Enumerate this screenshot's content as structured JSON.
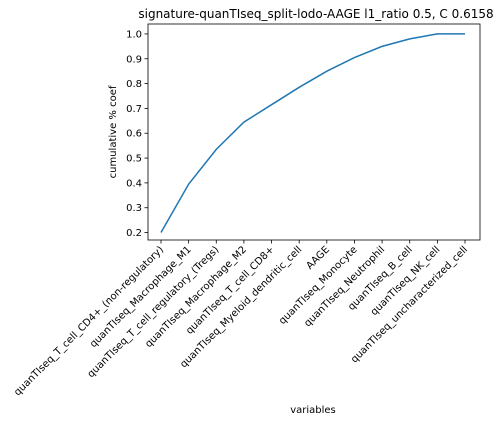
{
  "chart_data": {
    "type": "line",
    "title": "signature-quanTIseq_split-lodo-AAGE l1_ratio 0.5, C 0.6158",
    "xlabel": "variables",
    "ylabel": "cumulative % coef",
    "categories": [
      "quanTIseq_T_cell_CD4+_(non-regulatory)",
      "quanTIseq_Macrophage_M1",
      "quanTIseq_T_cell_regulatory_(Tregs)",
      "quanTIseq_Macrophage_M2",
      "quanTIseq_T_cell_CD8+",
      "quanTIseq_Myeloid_dendritic_cell",
      "AAGE",
      "quanTIseq_Monocyte",
      "quanTIseq_Neutrophil",
      "quanTIseq_B_cell",
      "quanTIseq_NK_cell",
      "quanTIseq_uncharacterized_cell"
    ],
    "values": [
      0.2,
      0.395,
      0.535,
      0.645,
      0.715,
      0.785,
      0.85,
      0.905,
      0.95,
      0.98,
      1.0,
      1.0
    ],
    "ylim": [
      0.17,
      1.04
    ],
    "yticks": [
      "0.2",
      "0.3",
      "0.4",
      "0.5",
      "0.6",
      "0.7",
      "0.8",
      "0.9",
      "1.0"
    ],
    "line_color": "#1f77b4",
    "grid": false,
    "legend": "none"
  }
}
